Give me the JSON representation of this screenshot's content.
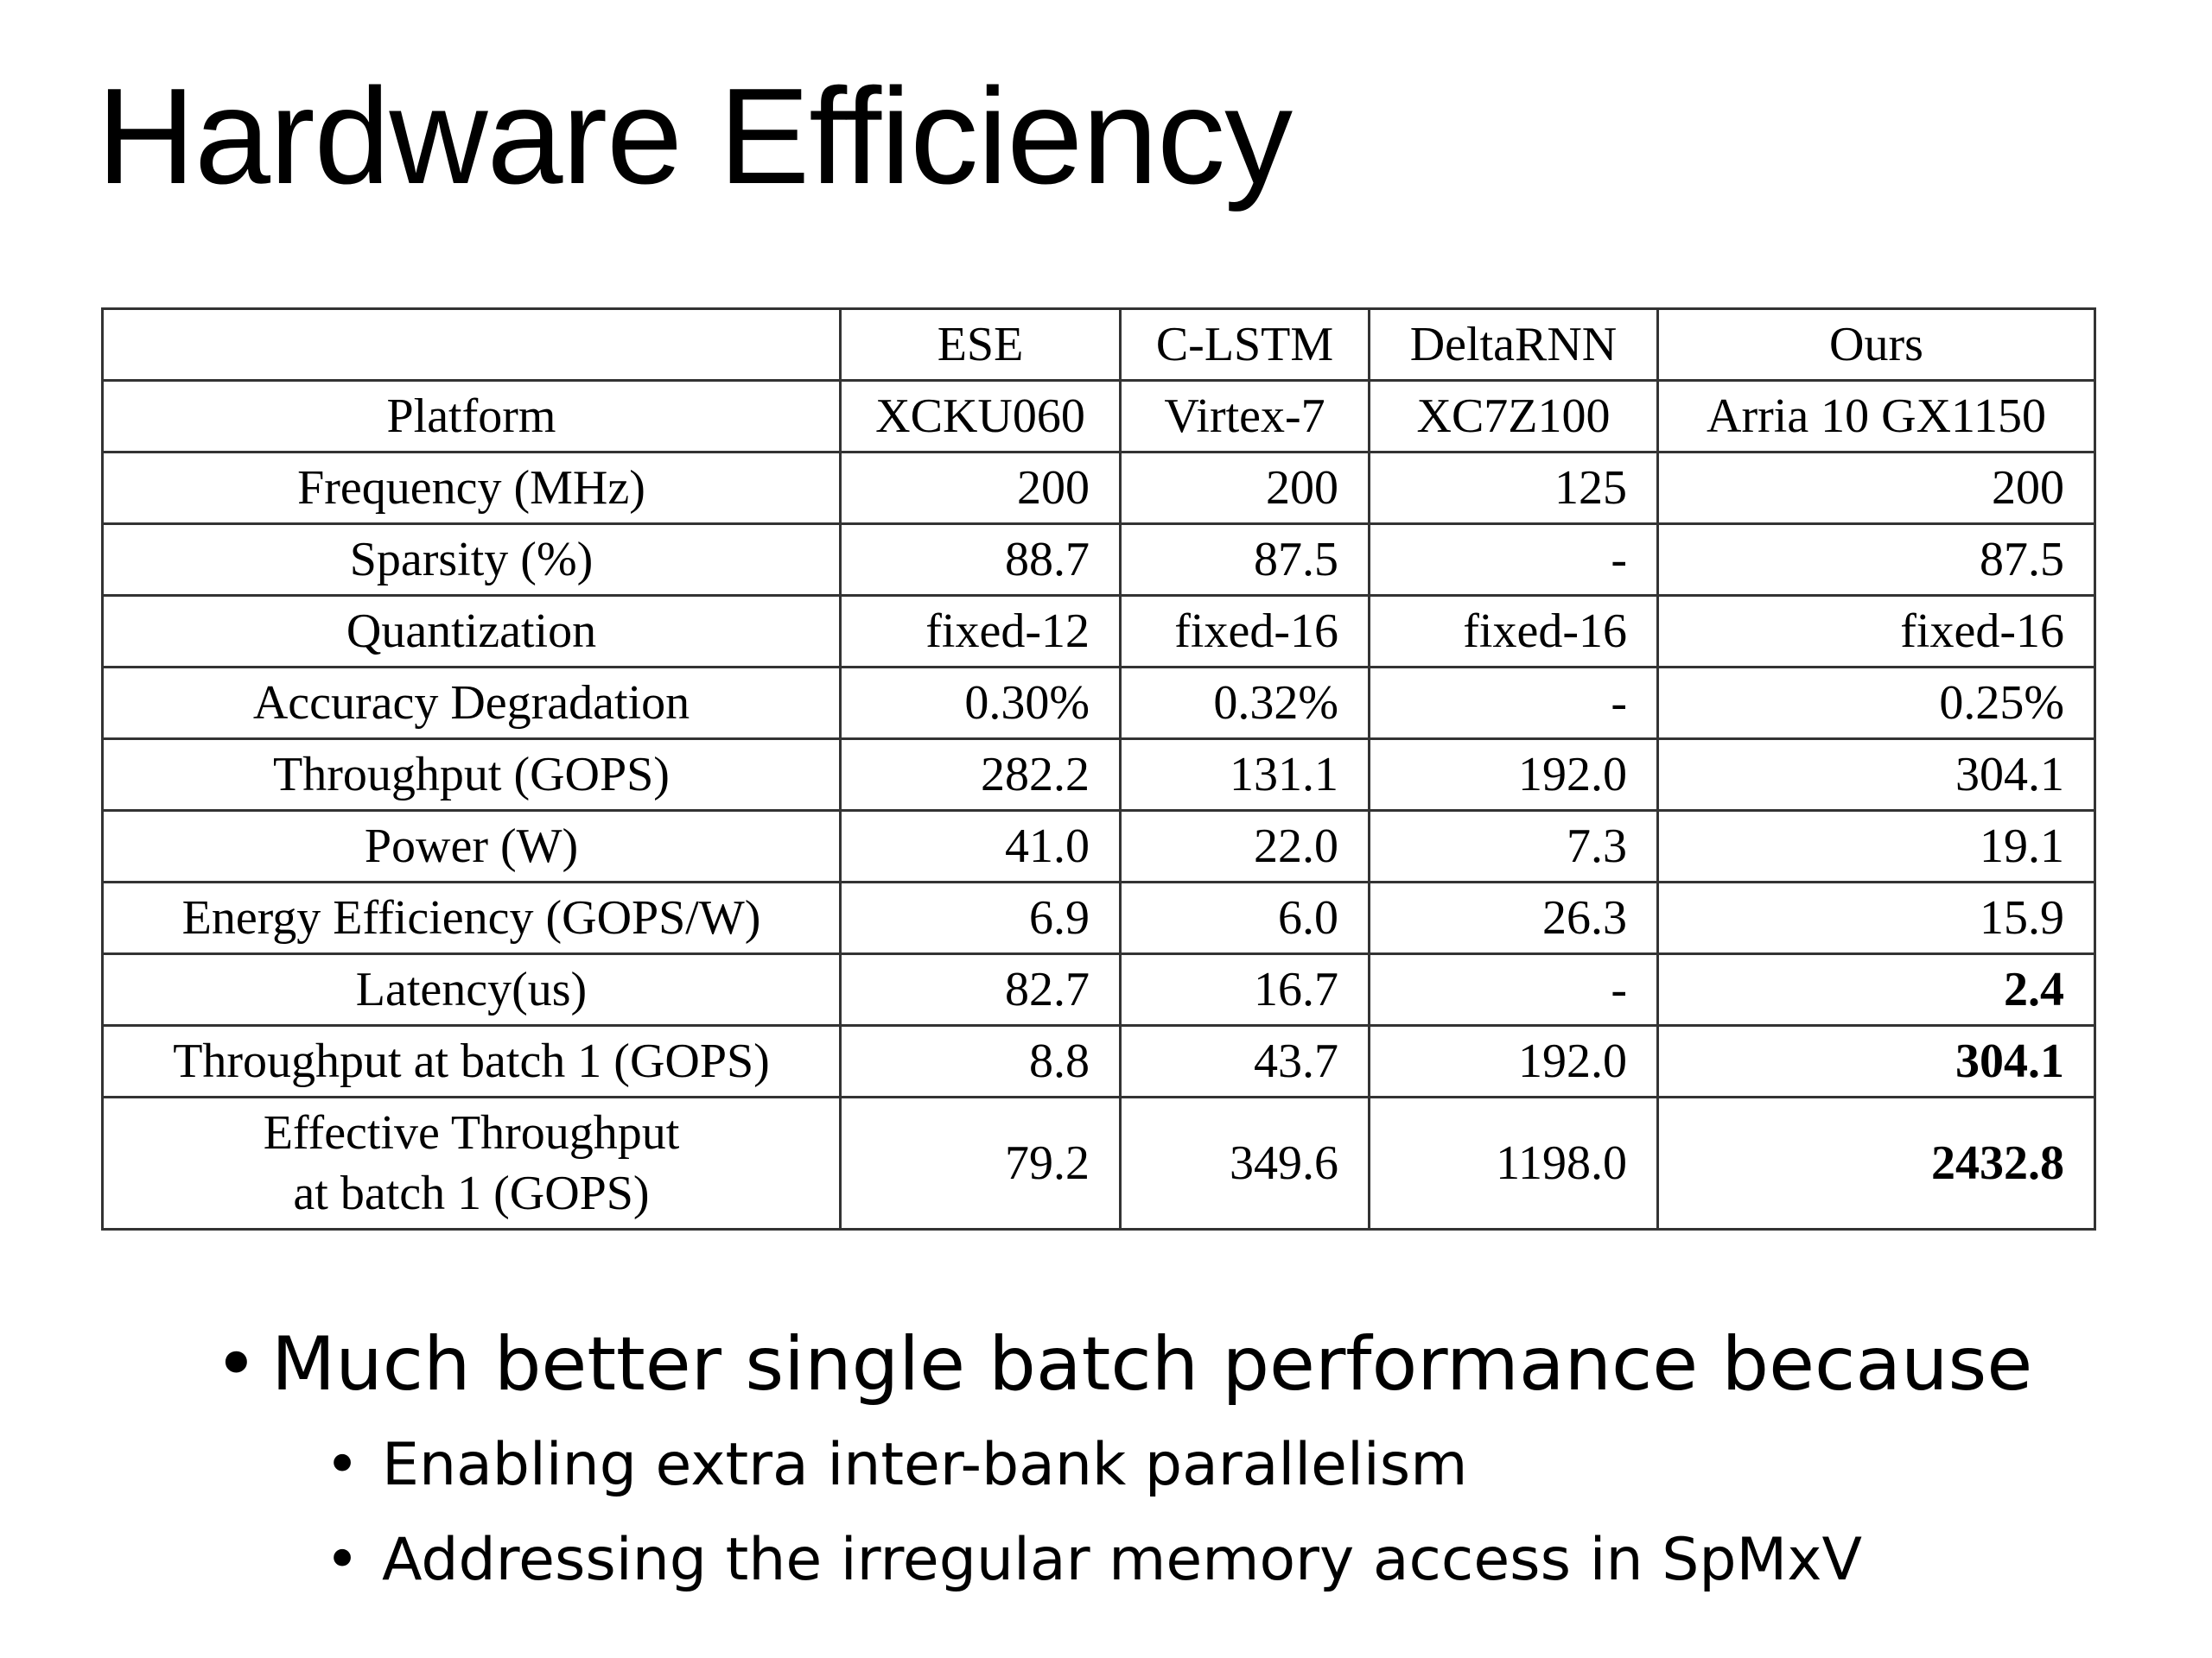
{
  "slide": {
    "title": "Hardware Efficiency"
  },
  "table": {
    "columns": [
      "",
      "ESE",
      "C-LSTM",
      "DeltaRNN",
      "Ours"
    ],
    "rows": [
      {
        "label": "Platform",
        "cells": [
          "XCKU060",
          "Virtex-7",
          "XC7Z100",
          "Arria 10 GX1150"
        ]
      },
      {
        "label": "Frequency (MHz)",
        "cells": [
          "200",
          "200",
          "125",
          "200"
        ]
      },
      {
        "label": "Sparsity (%)",
        "cells": [
          "88.7",
          "87.5",
          "-",
          "87.5"
        ]
      },
      {
        "label": "Quantization",
        "cells": [
          "fixed-12",
          "fixed-16",
          "fixed-16",
          "fixed-16"
        ]
      },
      {
        "label": "Accuracy Degradation",
        "cells": [
          "0.30%",
          "0.32%",
          "-",
          "0.25%"
        ]
      },
      {
        "label": "Throughput (GOPS)",
        "cells": [
          "282.2",
          "131.1",
          "192.0",
          "304.1"
        ]
      },
      {
        "label": "Power (W)",
        "cells": [
          "41.0",
          "22.0",
          "7.3",
          "19.1"
        ]
      },
      {
        "label": "Energy Efficiency (GOPS/W)",
        "cells": [
          "6.9",
          "6.0",
          "26.3",
          "15.9"
        ]
      },
      {
        "label": "Latency(us)",
        "cells": [
          "82.7",
          "16.7",
          "-",
          "2.4"
        ]
      },
      {
        "label": "Throughput at batch 1 (GOPS)",
        "cells": [
          "8.8",
          "43.7",
          "192.0",
          "304.1"
        ]
      },
      {
        "label_lines": [
          "Effective Throughput",
          "at batch 1 (GOPS)"
        ],
        "cells": [
          "79.2",
          "349.6",
          "1198.0",
          "2432.8"
        ]
      }
    ]
  },
  "bullets": {
    "main": "Much better single batch performance because",
    "sub": [
      "Enabling extra inter-bank parallelism",
      "Addressing the irregular memory access in SpMxV"
    ]
  }
}
